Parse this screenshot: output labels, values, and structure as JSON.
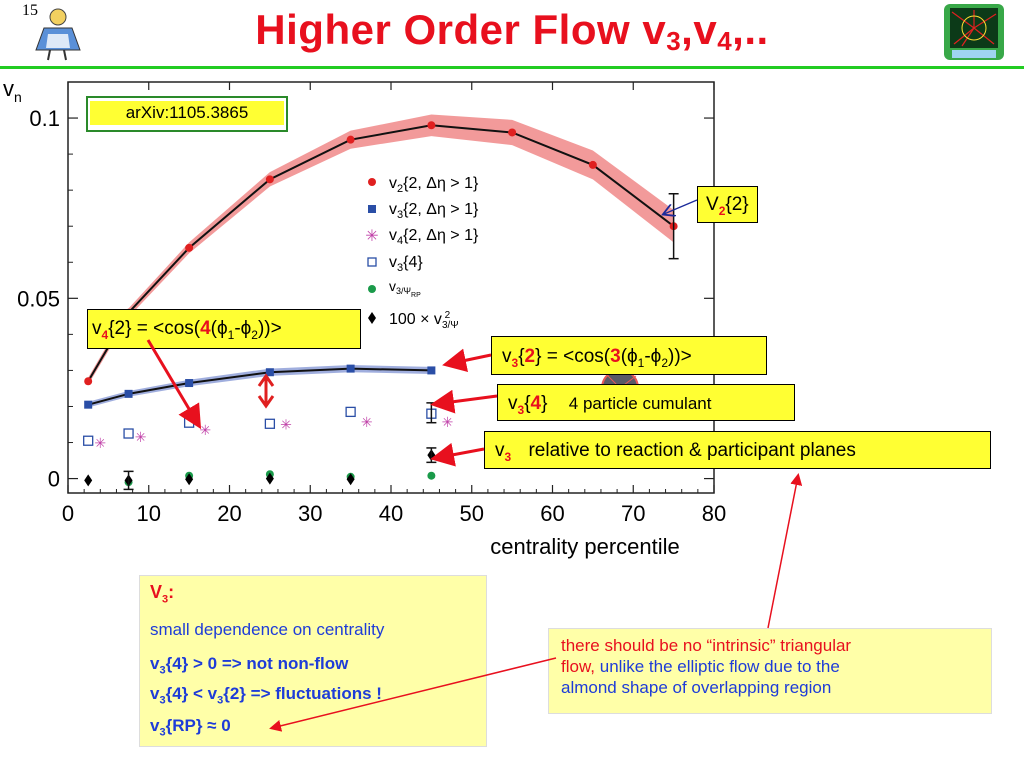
{
  "slide": {
    "number": "15",
    "title_main": "Higher Order Flow v",
    "title_sub1": "3",
    "title_mid": ",v",
    "title_sub2": "4",
    "title_end": ",.."
  },
  "colors": {
    "title": "#e8101e",
    "rule": "#22cc22",
    "callout_bg": "#ffff33",
    "note_bg": "#ffffa8",
    "note_text": "#1e3cd8"
  },
  "chart_data": {
    "type": "scatter",
    "ylabel": "v",
    "ylabel_sub": "n",
    "xlabel": "centrality percentile",
    "xlim": [
      0,
      80
    ],
    "ylim": [
      -0.004,
      0.11
    ],
    "x_ticks": [
      "0",
      "10",
      "20",
      "30",
      "40",
      "50",
      "60",
      "70",
      "80"
    ],
    "y_ticks": [
      "0",
      "0.05",
      "0.1"
    ],
    "y_tick_values": [
      0,
      0.05,
      0.1
    ],
    "reference": "arXiv:1105.3865",
    "legend": {
      "placement": "upper-right",
      "items": [
        {
          "marker": "filled-circle",
          "color": "#e02020",
          "base": "v",
          "sub": "2",
          "rest": "{2, Δη > 1}"
        },
        {
          "marker": "filled-square",
          "color": "#2a4ea6",
          "base": "v",
          "sub": "3",
          "rest": "{2, Δη > 1}"
        },
        {
          "marker": "star",
          "color": "#c040a8",
          "base": "v",
          "sub": "4",
          "rest": "{2, Δη > 1}"
        },
        {
          "marker": "open-square",
          "color": "#2a4ea6",
          "base": "v",
          "sub": "3",
          "rest": "{4}"
        },
        {
          "marker": "filled-circle",
          "color": "#1a9a4a",
          "base": "v",
          "sub": "3/Ψ",
          "rest": "RP"
        },
        {
          "marker": "diamond",
          "color": "#000000",
          "base": "100 × v",
          "sub": "3/Ψ",
          "rest": "2"
        }
      ]
    },
    "series": [
      {
        "name": "v2{2, Δη > 1}",
        "marker": "filled-circle",
        "color": "#e02020",
        "line": true,
        "band": true,
        "x": [
          2.5,
          7.5,
          15,
          25,
          35,
          45,
          55,
          65,
          75
        ],
        "y": [
          0.027,
          0.046,
          0.064,
          0.083,
          0.094,
          0.098,
          0.096,
          0.087,
          0.07
        ],
        "band_half_width": [
          0.001,
          0.0012,
          0.0015,
          0.002,
          0.0025,
          0.003,
          0.0035,
          0.004,
          0.0045
        ]
      },
      {
        "name": "v3{2, Δη > 1}",
        "marker": "filled-square",
        "color": "#2a4ea6",
        "line": true,
        "band": true,
        "x": [
          2.5,
          7.5,
          15,
          25,
          35,
          45
        ],
        "y": [
          0.0205,
          0.0235,
          0.0265,
          0.0295,
          0.0305,
          0.03
        ],
        "band_half_width": [
          0.0008,
          0.0008,
          0.0009,
          0.001,
          0.001,
          0.001
        ]
      },
      {
        "name": "v4{2, Δη > 1}",
        "marker": "star",
        "color": "#c040a8",
        "x": [
          4,
          9,
          17,
          27,
          37,
          47
        ],
        "y": [
          0.0098,
          0.0115,
          0.0135,
          0.015,
          0.0157,
          0.0157
        ]
      },
      {
        "name": "v3{4}",
        "marker": "open-square",
        "color": "#2a4ea6",
        "x": [
          2.5,
          7.5,
          15,
          25,
          35,
          45
        ],
        "y": [
          0.0105,
          0.0125,
          0.0155,
          0.0152,
          0.0185,
          0.018
        ]
      },
      {
        "name": "v3/ΨRP",
        "marker": "filled-circle",
        "color": "#1a9a4a",
        "x": [
          7.5,
          15,
          25,
          35,
          45
        ],
        "y": [
          -0.001,
          0.0008,
          0.0012,
          0.0005,
          0.0008
        ]
      },
      {
        "name": "100 × v²3/Ψ2",
        "marker": "diamond",
        "color": "#000000",
        "x": [
          2.5,
          7.5,
          15,
          25,
          35,
          45
        ],
        "y": [
          -0.0005,
          -0.0005,
          -0.0002,
          0.0,
          -0.0002,
          0.0065
        ]
      }
    ]
  },
  "callouts": {
    "v2": {
      "base": "V",
      "sub": "2",
      "rest": "{2}"
    },
    "v4": {
      "base": "v",
      "sub": "4",
      "pre": "{2} = <cos(",
      "num": "4",
      "mid": "(ϕ",
      "s1": "1",
      "dash": "-ϕ",
      "s2": "2",
      "end": "))>"
    },
    "v3": {
      "base": "v",
      "sub": "3",
      "pre": "{",
      "num": "2",
      "mid": "} = <cos(",
      "num2": "3",
      "mid2": "(ϕ",
      "s1": "1",
      "dash": "-ϕ",
      "s2": "2",
      "end": "))>"
    },
    "v3_4": {
      "base": "v",
      "sub": "3",
      "open": "{",
      "num": "4",
      "close": "}",
      "desc": "4 particle cumulant"
    },
    "v3_rp": {
      "base": "v",
      "sub": "3",
      "desc": "relative to reaction & participant planes"
    }
  },
  "notes": {
    "left": {
      "heading_base": "V",
      "heading_sub": "3",
      "heading_colon": ":",
      "line1": "small dependence on centrality",
      "line2_a": "v",
      "line2_sub": "3",
      "line2_b": "{4} > 0 => not non-flow",
      "line3_a": "v",
      "line3_sub1": "3",
      "line3_b": "{4} < v",
      "line3_sub2": "3",
      "line3_c": "{2} => fluctuations !",
      "line4_a": "v",
      "line4_sub": "3",
      "line4_b": "{RP} ≈ 0"
    },
    "right": {
      "red_line1": "there should be no “intrinsic” triangular",
      "red_line2": "flow,",
      "blue_line2": " unlike the elliptic flow due to the",
      "blue_line3": "almond shape of overlapping region"
    }
  }
}
